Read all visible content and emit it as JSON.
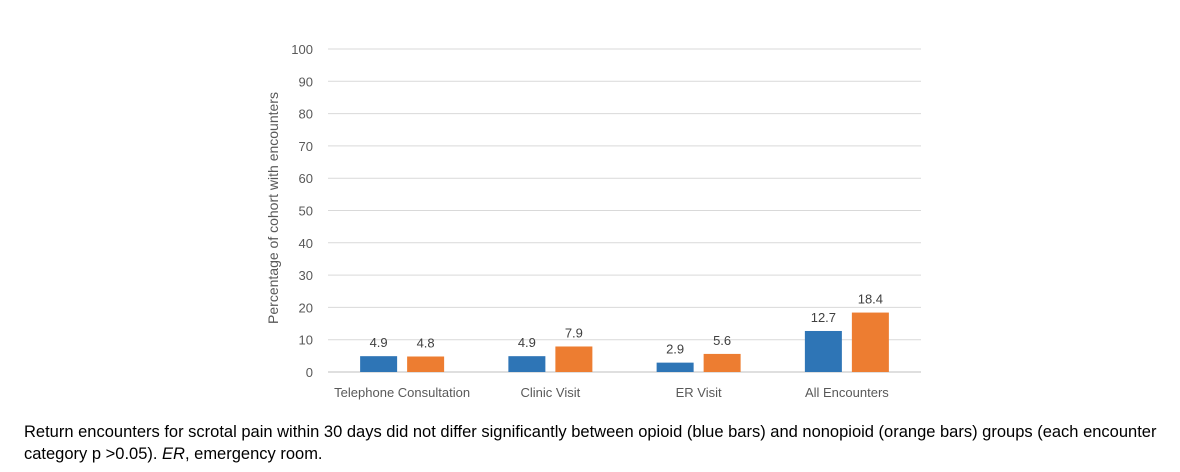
{
  "chart_data": {
    "type": "bar",
    "title": "",
    "xlabel": "",
    "ylabel": "Percentage of cohort with encounters",
    "ylim": [
      0,
      100
    ],
    "yticks": [
      0,
      10,
      20,
      30,
      40,
      50,
      60,
      70,
      80,
      90,
      100
    ],
    "grid": true,
    "categories": [
      "Telephone Consultation",
      "Clinic Visit",
      "ER Visit",
      "All Encounters"
    ],
    "series": [
      {
        "name": "opioid",
        "color": "#2e75b6",
        "values": [
          4.9,
          4.9,
          2.9,
          12.7
        ],
        "labels": [
          "4.9",
          "4.9",
          "2.9",
          "12.7"
        ]
      },
      {
        "name": "nonopioid",
        "color": "#ed7d31",
        "values": [
          4.8,
          7.9,
          5.6,
          18.4
        ],
        "labels": [
          "4.8",
          "7.9",
          "5.6",
          "18.4"
        ]
      }
    ]
  },
  "caption": {
    "text_before": "Return encounters for scrotal pain within 30 days did not differ significantly between opioid (blue bars) and nonopioid (orange bars) groups (each encounter category p >0.05). ",
    "abbrev": "ER",
    "text_after": ", emergency room."
  }
}
